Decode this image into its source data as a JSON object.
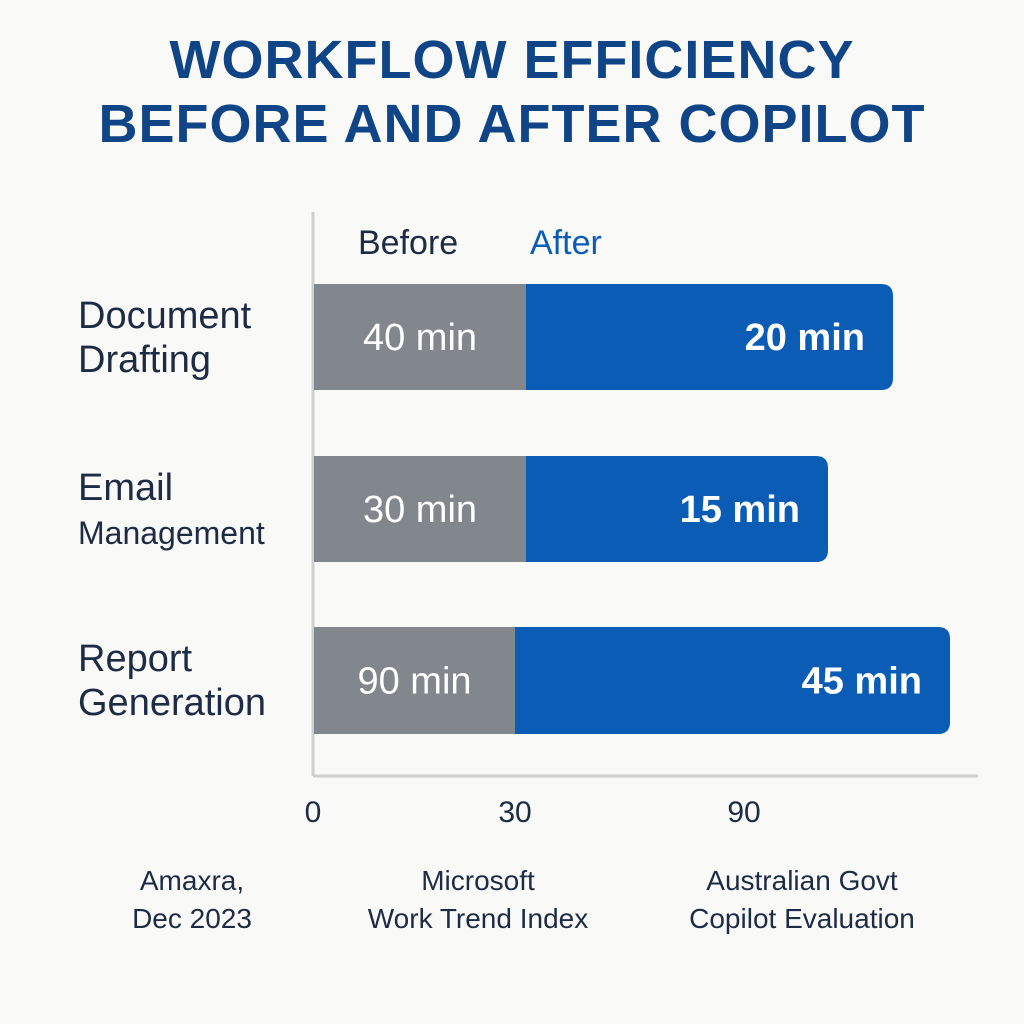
{
  "title": {
    "line1": "WORKFLOW EFFICIENCY",
    "line2": "BEFORE AND AFTER COPILOT"
  },
  "colors": {
    "title": "#0f4487",
    "before": "#82878e",
    "after": "#0a5cb4",
    "text": "#1d2b45",
    "axis": "#cfcfcf"
  },
  "chart_data": {
    "type": "bar",
    "stacked": true,
    "orientation": "horizontal",
    "categories": [
      [
        "Document",
        "Drafting"
      ],
      [
        "Email",
        "Management"
      ],
      [
        "Report",
        "Generation"
      ]
    ],
    "series": [
      {
        "name": "Before",
        "labels": [
          "40 min",
          "30 min",
          "90 min"
        ]
      },
      {
        "name": "After",
        "labels": [
          "20 min",
          "15 min",
          "45 min"
        ]
      }
    ],
    "x_ticks": [
      "0",
      "30",
      "90"
    ],
    "legend": "top"
  },
  "sources": [
    {
      "line1": "Amaxra,",
      "line2": "Dec 2023"
    },
    {
      "line1": "Microsoft",
      "line2": "Work Trend Index"
    },
    {
      "line1": "Australian Govt",
      "line2": "Copilot Evaluation"
    }
  ]
}
